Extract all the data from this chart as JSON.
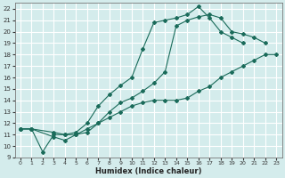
{
  "xlabel": "Humidex (Indice chaleur)",
  "bg_color": "#d4ecec",
  "grid_color": "#ffffff",
  "line_color": "#1a6b5a",
  "xlim": [
    -0.5,
    23.5
  ],
  "ylim": [
    9,
    22.5
  ],
  "xticks": [
    0,
    1,
    2,
    3,
    4,
    5,
    6,
    7,
    8,
    9,
    10,
    11,
    12,
    13,
    14,
    15,
    16,
    17,
    18,
    19,
    20,
    21,
    22,
    23
  ],
  "yticks": [
    9,
    10,
    11,
    12,
    13,
    14,
    15,
    16,
    17,
    18,
    19,
    20,
    21,
    22
  ],
  "line1_x": [
    0,
    1,
    2,
    3,
    4,
    5,
    6,
    7,
    8,
    9,
    10,
    11,
    12,
    13,
    14,
    15,
    16,
    17,
    18,
    19,
    20,
    21,
    22
  ],
  "line1_y": [
    11.5,
    11.5,
    9.5,
    11.0,
    11.0,
    11.2,
    12.0,
    13.5,
    14.5,
    15.3,
    16.0,
    18.5,
    20.8,
    21.0,
    21.2,
    21.5,
    22.2,
    21.2,
    20.0,
    19.5,
    19.0,
    null,
    null
  ],
  "line2_x": [
    0,
    1,
    3,
    4,
    5,
    6,
    7,
    8,
    9,
    10,
    11,
    12,
    13,
    14,
    15,
    16,
    17,
    18,
    19,
    20,
    21,
    22
  ],
  "line2_y": [
    11.5,
    11.5,
    11.2,
    11.0,
    11.0,
    11.2,
    12.0,
    13.0,
    13.8,
    14.2,
    14.8,
    15.5,
    16.5,
    20.5,
    21.0,
    21.3,
    21.5,
    21.2,
    20.0,
    19.8,
    19.5,
    19.0
  ],
  "line3_x": [
    0,
    1,
    3,
    4,
    5,
    6,
    7,
    8,
    9,
    10,
    11,
    12,
    13,
    14,
    15,
    16,
    17,
    18,
    19,
    20,
    21,
    22,
    23
  ],
  "line3_y": [
    11.5,
    11.5,
    10.8,
    10.5,
    11.0,
    11.5,
    12.0,
    12.5,
    13.0,
    13.5,
    13.8,
    14.0,
    14.0,
    14.0,
    14.2,
    14.8,
    15.2,
    16.0,
    16.5,
    17.0,
    17.5,
    18.0,
    18.0
  ]
}
